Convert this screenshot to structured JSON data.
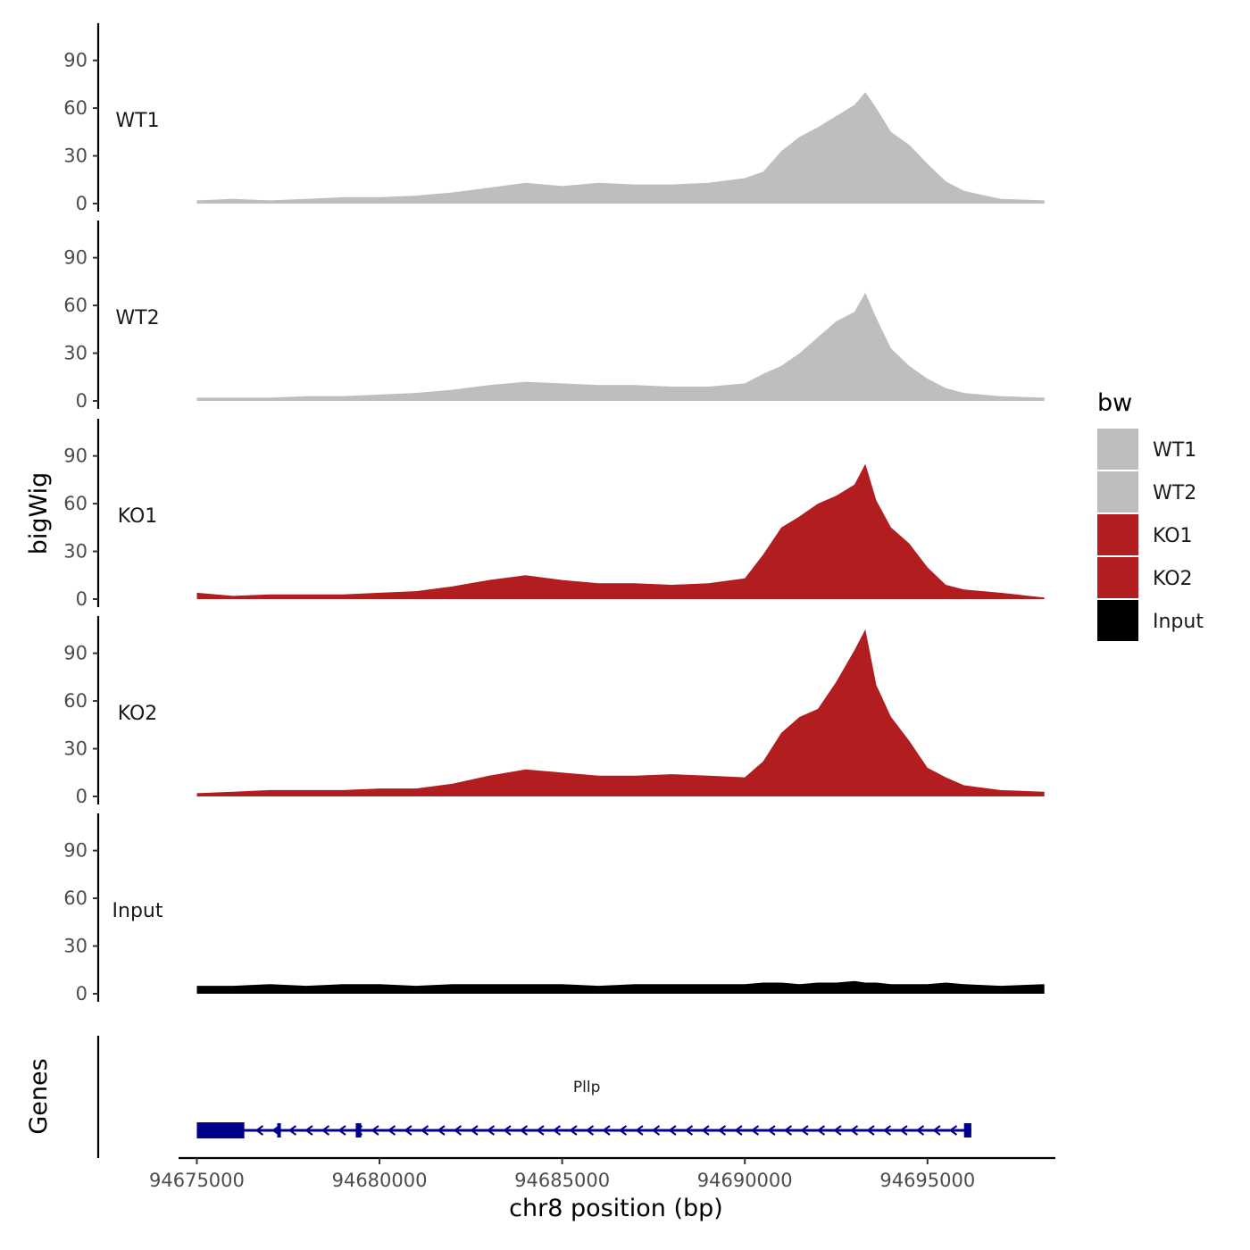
{
  "chart_data": {
    "type": "area",
    "title": "",
    "xlabel": "chr8 position (bp)",
    "ylabel": "bigWig",
    "xlim": [
      94674500,
      94698500
    ],
    "ylim": [
      0,
      110
    ],
    "x_ticks": [
      94675000,
      94680000,
      94685000,
      94690000,
      94695000
    ],
    "x_tick_labels": [
      "94675000",
      "94680000",
      "94685000",
      "94690000",
      "94695000"
    ],
    "y_ticks": [
      0,
      30,
      60,
      90
    ],
    "y_tick_labels": [
      "0",
      "30",
      "60",
      "90"
    ],
    "grid": false,
    "x": [
      94675000,
      94676000,
      94677000,
      94678000,
      94679000,
      94680000,
      94681000,
      94682000,
      94683000,
      94684000,
      94685000,
      94686000,
      94687000,
      94688000,
      94689000,
      94690000,
      94690500,
      94691000,
      94691500,
      94692000,
      94692500,
      94693000,
      94693300,
      94693600,
      94694000,
      94694500,
      94695000,
      94695500,
      94696000,
      94697000,
      94698200
    ],
    "series": [
      {
        "name": "WT1",
        "color": "#bebebe",
        "values": [
          2,
          3,
          2,
          3,
          4,
          4,
          5,
          7,
          10,
          13,
          11,
          13,
          12,
          12,
          13,
          16,
          20,
          33,
          42,
          48,
          55,
          62,
          70,
          60,
          45,
          37,
          25,
          14,
          8,
          3,
          2
        ]
      },
      {
        "name": "WT2",
        "color": "#bebebe",
        "values": [
          2,
          2,
          2,
          3,
          3,
          4,
          5,
          7,
          10,
          12,
          11,
          10,
          10,
          9,
          9,
          11,
          17,
          22,
          30,
          40,
          50,
          56,
          68,
          52,
          33,
          22,
          14,
          8,
          5,
          3,
          2
        ]
      },
      {
        "name": "KO1",
        "color": "#b21d1f",
        "values": [
          4,
          2,
          3,
          3,
          3,
          4,
          5,
          8,
          12,
          15,
          12,
          10,
          10,
          9,
          10,
          13,
          28,
          45,
          52,
          60,
          65,
          72,
          85,
          62,
          45,
          35,
          20,
          9,
          6,
          4,
          1
        ]
      },
      {
        "name": "KO2",
        "color": "#b21d1f",
        "values": [
          2,
          3,
          4,
          4,
          4,
          5,
          5,
          8,
          13,
          17,
          15,
          13,
          13,
          14,
          13,
          12,
          22,
          40,
          50,
          55,
          72,
          92,
          105,
          70,
          50,
          35,
          18,
          12,
          7,
          4,
          3
        ]
      },
      {
        "name": "Input",
        "color": "#000000",
        "values": [
          5,
          5,
          6,
          5,
          6,
          6,
          5,
          6,
          6,
          6,
          6,
          5,
          6,
          6,
          6,
          6,
          7,
          7,
          6,
          7,
          7,
          8,
          7,
          7,
          6,
          6,
          6,
          7,
          6,
          5,
          6
        ]
      }
    ],
    "tracks": [
      "WT1",
      "WT2",
      "KO1",
      "KO2",
      "Input"
    ],
    "legend": {
      "title": "bw",
      "position": "right",
      "entries": [
        {
          "label": "WT1",
          "color": "#bebebe"
        },
        {
          "label": "WT2",
          "color": "#bebebe"
        },
        {
          "label": "KO1",
          "color": "#b21d1f"
        },
        {
          "label": "KO2",
          "color": "#b21d1f"
        },
        {
          "label": "Input",
          "color": "#000000"
        }
      ]
    },
    "genes_track": {
      "label": "Genes",
      "gene_name": "Pllp",
      "strand": "-",
      "color": "#00008b",
      "start": 94675000,
      "end": 94696200,
      "exons": [
        [
          94675000,
          94676300
        ],
        [
          94677200,
          94677300
        ],
        [
          94679350,
          94679500
        ],
        [
          94696000,
          94696200
        ]
      ]
    }
  }
}
